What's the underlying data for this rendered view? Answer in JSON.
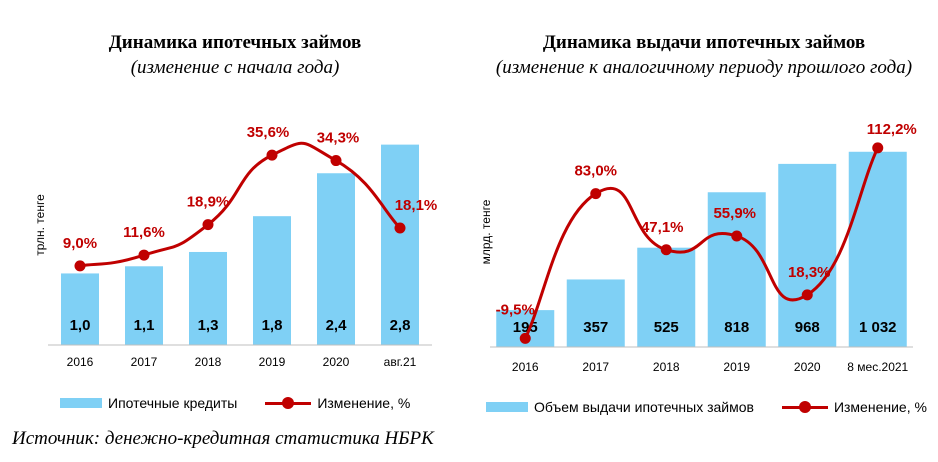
{
  "charts": [
    {
      "title": "Динамика ипотечных займов",
      "subtitle": "(изменение с начала года)",
      "ylabel": "трлн. тенге",
      "legend_bar": "Ипотечные кредиты",
      "legend_line": "Изменение, %"
    },
    {
      "title": "Динамика выдачи ипотечных займов",
      "subtitle": "(изменение к аналогичному периоду прошлого года)",
      "ylabel": "млрд. тенге",
      "legend_bar": "Объем выдачи ипотечных займов",
      "legend_line": "Изменение, %"
    }
  ],
  "source": "Источник: денежно-кредитная статистика НБРК",
  "colors": {
    "bar": "#7fd0f5",
    "line": "#c00000"
  },
  "chart_data": [
    {
      "type": "bar",
      "title": "Динамика ипотечных займов",
      "subtitle": "(изменение с начала года)",
      "ylabel": "трлн. тенге",
      "categories": [
        "2016",
        "2017",
        "2018",
        "2019",
        "2020",
        "авг.21"
      ],
      "series": [
        {
          "name": "Ипотечные кредиты",
          "type": "bar",
          "values": [
            1.0,
            1.1,
            1.3,
            1.8,
            2.4,
            2.8
          ],
          "labels": [
            "1,0",
            "1,1",
            "1,3",
            "1,8",
            "2,4",
            "2,8"
          ]
        },
        {
          "name": "Изменение, %",
          "type": "line",
          "values": [
            9.0,
            11.6,
            18.9,
            35.6,
            34.3,
            18.1
          ],
          "labels": [
            "9,0%",
            "11,6%",
            "18,9%",
            "35,6%",
            "34,3%",
            "18,1%"
          ]
        }
      ],
      "ylim": [
        0,
        3.2
      ],
      "y2lim": [
        -10,
        45
      ],
      "legend_position": "bottom"
    },
    {
      "type": "bar",
      "title": "Динамика выдачи ипотечных займов",
      "subtitle": "(изменение к аналогичному периоду прошлого года)",
      "ylabel": "млрд. тенге",
      "categories": [
        "2016",
        "2017",
        "2018",
        "2019",
        "2020",
        "8 мес.2021"
      ],
      "series": [
        {
          "name": "Объем выдачи ипотечных займов",
          "type": "bar",
          "values": [
            195,
            357,
            525,
            818,
            968,
            1032
          ],
          "labels": [
            "195",
            "357",
            "525",
            "818",
            "968",
            "1 032"
          ]
        },
        {
          "name": "Изменение, %",
          "type": "line",
          "values": [
            -9.5,
            83.0,
            47.1,
            55.9,
            18.3,
            112.2
          ],
          "labels": [
            "-9,5%",
            "83,0%",
            "47,1%",
            "55,9%",
            "18,3%",
            "112,2%"
          ]
        }
      ],
      "ylim": [
        0,
        1200
      ],
      "y2lim": [
        -15,
        130
      ],
      "legend_position": "bottom"
    }
  ]
}
